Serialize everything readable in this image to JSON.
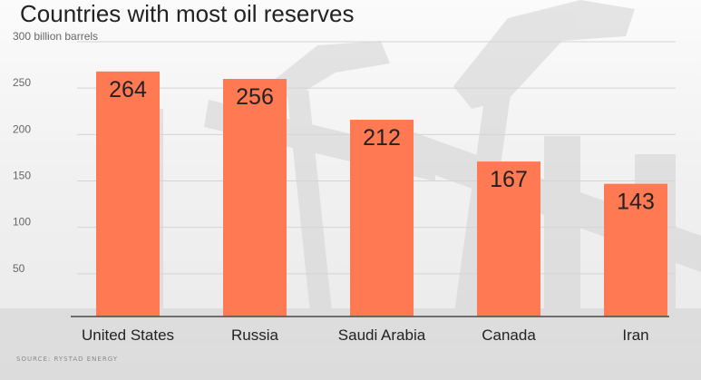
{
  "chart_data": {
    "type": "bar",
    "title": "Countries with most oil reserves",
    "ylabel": "",
    "xlabel": "",
    "y_unit_label": "billion barrels",
    "ylim": [
      0,
      300
    ],
    "yticks": [
      50,
      100,
      150,
      200,
      250,
      300
    ],
    "ytick_labels": [
      "50",
      "100",
      "150",
      "200",
      "250",
      "300 billion barrels"
    ],
    "categories": [
      "United States",
      "Russia",
      "Saudi Arabia",
      "Canada",
      "Iran"
    ],
    "values": [
      264,
      256,
      212,
      167,
      143
    ],
    "data_labels": [
      "264",
      "256",
      "212",
      "167",
      "143"
    ],
    "grid": true,
    "legend": "none",
    "source": "SOURCE: RYSTAD ENERGY",
    "colors": {
      "bar": "#ff7a52",
      "grid": "#d4d4d4",
      "axis": "#4a4a4a",
      "text": "#222222",
      "muted": "#666666"
    }
  }
}
